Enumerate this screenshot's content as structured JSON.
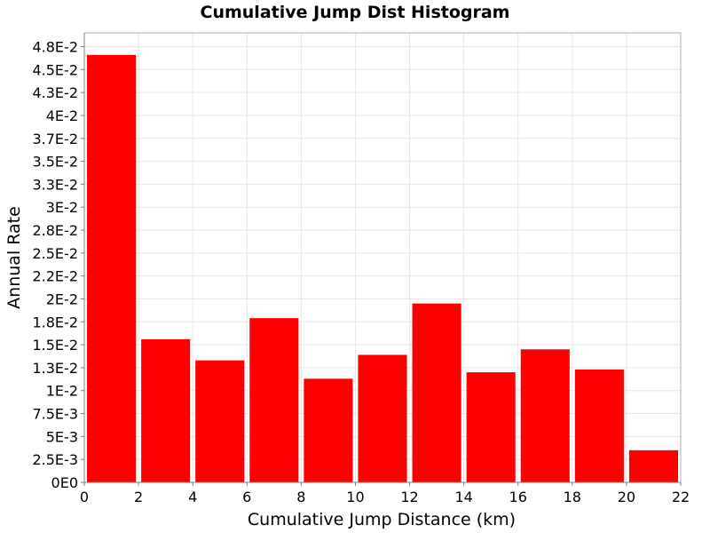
{
  "chart_data": {
    "type": "bar",
    "title": "Cumulative Jump Dist Histogram",
    "xlabel": "Cumulative Jump Distance (km)",
    "ylabel": "Annual Rate",
    "xlim": [
      0,
      22
    ],
    "ylim": [
      0,
      0.049
    ],
    "grid": true,
    "legend": "none",
    "bar_color": "#ff0000",
    "bins": [
      {
        "x0": 0,
        "x1": 2,
        "value": 0.0466
      },
      {
        "x0": 2,
        "x1": 4,
        "value": 0.0156
      },
      {
        "x0": 4,
        "x1": 6,
        "value": 0.0133
      },
      {
        "x0": 6,
        "x1": 8,
        "value": 0.0179
      },
      {
        "x0": 8,
        "x1": 10,
        "value": 0.0113
      },
      {
        "x0": 10,
        "x1": 12,
        "value": 0.0139
      },
      {
        "x0": 12,
        "x1": 14,
        "value": 0.0195
      },
      {
        "x0": 14,
        "x1": 16,
        "value": 0.012
      },
      {
        "x0": 16,
        "x1": 18,
        "value": 0.0145
      },
      {
        "x0": 18,
        "x1": 20,
        "value": 0.0123
      },
      {
        "x0": 20,
        "x1": 22,
        "value": 0.0035
      }
    ],
    "x_ticks": [
      {
        "value": 0,
        "label": "0"
      },
      {
        "value": 2,
        "label": "2"
      },
      {
        "value": 4,
        "label": "4"
      },
      {
        "value": 6,
        "label": "6"
      },
      {
        "value": 8,
        "label": "8"
      },
      {
        "value": 10,
        "label": "10"
      },
      {
        "value": 12,
        "label": "12"
      },
      {
        "value": 14,
        "label": "14"
      },
      {
        "value": 16,
        "label": "16"
      },
      {
        "value": 18,
        "label": "18"
      },
      {
        "value": 20,
        "label": "20"
      },
      {
        "value": 22,
        "label": "22"
      }
    ],
    "y_ticks": [
      {
        "value": 0,
        "label": "0E0"
      },
      {
        "value": 0.0025,
        "label": "2.5E-3"
      },
      {
        "value": 0.005,
        "label": "5E-3"
      },
      {
        "value": 0.0075,
        "label": "7.5E-3"
      },
      {
        "value": 0.01,
        "label": "1E-2"
      },
      {
        "value": 0.0125,
        "label": "1.3E-2"
      },
      {
        "value": 0.015,
        "label": "1.5E-2"
      },
      {
        "value": 0.0175,
        "label": "1.8E-2"
      },
      {
        "value": 0.02,
        "label": "2E-2"
      },
      {
        "value": 0.0225,
        "label": "2.2E-2"
      },
      {
        "value": 0.025,
        "label": "2.5E-2"
      },
      {
        "value": 0.0275,
        "label": "2.8E-2"
      },
      {
        "value": 0.03,
        "label": "3E-2"
      },
      {
        "value": 0.0325,
        "label": "3.3E-2"
      },
      {
        "value": 0.035,
        "label": "3.5E-2"
      },
      {
        "value": 0.0375,
        "label": "3.7E-2"
      },
      {
        "value": 0.04,
        "label": "4E-2"
      },
      {
        "value": 0.0425,
        "label": "4.3E-2"
      },
      {
        "value": 0.045,
        "label": "4.5E-2"
      },
      {
        "value": 0.0475,
        "label": "4.8E-2"
      }
    ]
  }
}
